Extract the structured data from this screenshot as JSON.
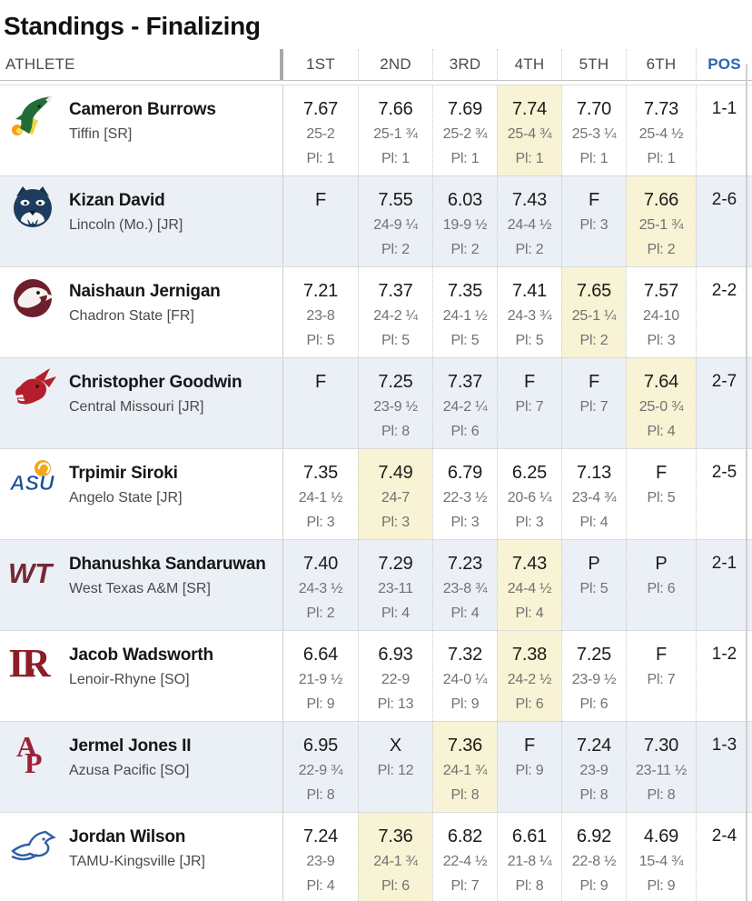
{
  "title": "Standings - Finalizing",
  "table": {
    "columns": {
      "athlete": "ATHLETE",
      "rounds": [
        "1ST",
        "2ND",
        "3RD",
        "4TH",
        "5TH",
        "6TH"
      ],
      "pos": "POS"
    },
    "colors": {
      "pos_header": "#2767ae",
      "highlight": "#f8f3d4",
      "alt_row": "#eaf0f5"
    },
    "rows": [
      {
        "athlete": "Cameron Burrows",
        "team": "Tiffin [SR]",
        "logo": "tiffin-dragon",
        "pos": "1-1",
        "attempts": [
          {
            "mark": "7.67",
            "distance": "25-2",
            "place": "Pl: 1"
          },
          {
            "mark": "7.66",
            "distance": "25-1 ¾",
            "place": "Pl: 1"
          },
          {
            "mark": "7.69",
            "distance": "25-2 ¾",
            "place": "Pl: 1"
          },
          {
            "mark": "7.74",
            "distance": "25-4 ¾",
            "place": "Pl: 1",
            "highlight": true
          },
          {
            "mark": "7.70",
            "distance": "25-3 ¼",
            "place": "Pl: 1"
          },
          {
            "mark": "7.73",
            "distance": "25-4 ½",
            "place": "Pl: 1"
          }
        ]
      },
      {
        "athlete": "Kizan David",
        "team": "Lincoln (Mo.) [JR]",
        "logo": "lincoln-blue-tiger",
        "pos": "2-6",
        "attempts": [
          {
            "mark": "F"
          },
          {
            "mark": "7.55",
            "distance": "24-9 ¼",
            "place": "Pl: 2"
          },
          {
            "mark": "6.03",
            "distance": "19-9 ½",
            "place": "Pl: 2"
          },
          {
            "mark": "7.43",
            "distance": "24-4 ½",
            "place": "Pl: 2"
          },
          {
            "mark": "F",
            "place": "Pl: 3"
          },
          {
            "mark": "7.66",
            "distance": "25-1 ¾",
            "place": "Pl: 2",
            "highlight": true
          }
        ]
      },
      {
        "athlete": "Naishaun Jernigan",
        "team": "Chadron State [FR]",
        "logo": "chadron-eagle",
        "pos": "2-2",
        "attempts": [
          {
            "mark": "7.21",
            "distance": "23-8",
            "place": "Pl: 5"
          },
          {
            "mark": "7.37",
            "distance": "24-2 ¼",
            "place": "Pl: 5"
          },
          {
            "mark": "7.35",
            "distance": "24-1 ½",
            "place": "Pl: 5"
          },
          {
            "mark": "7.41",
            "distance": "24-3 ¾",
            "place": "Pl: 5"
          },
          {
            "mark": "7.65",
            "distance": "25-1 ¼",
            "place": "Pl: 2",
            "highlight": true
          },
          {
            "mark": "7.57",
            "distance": "24-10",
            "place": "Pl: 3"
          }
        ]
      },
      {
        "athlete": "Christopher Goodwin",
        "team": "Central Missouri [JR]",
        "logo": "central-missouri-mule",
        "pos": "2-7",
        "attempts": [
          {
            "mark": "F"
          },
          {
            "mark": "7.25",
            "distance": "23-9 ½",
            "place": "Pl: 8"
          },
          {
            "mark": "7.37",
            "distance": "24-2 ¼",
            "place": "Pl: 6"
          },
          {
            "mark": "F",
            "place": "Pl: 7"
          },
          {
            "mark": "F",
            "place": "Pl: 7"
          },
          {
            "mark": "7.64",
            "distance": "25-0 ¾",
            "place": "Pl: 4",
            "highlight": true
          }
        ]
      },
      {
        "athlete": "Trpimir Siroki",
        "team": "Angelo State [JR]",
        "logo": "angelo-state-asu",
        "pos": "2-5",
        "attempts": [
          {
            "mark": "7.35",
            "distance": "24-1 ½",
            "place": "Pl: 3"
          },
          {
            "mark": "7.49",
            "distance": "24-7",
            "place": "Pl: 3",
            "highlight": true
          },
          {
            "mark": "6.79",
            "distance": "22-3 ½",
            "place": "Pl: 3"
          },
          {
            "mark": "6.25",
            "distance": "20-6 ¼",
            "place": "Pl: 3"
          },
          {
            "mark": "7.13",
            "distance": "23-4 ¾",
            "place": "Pl: 4"
          },
          {
            "mark": "F",
            "place": "Pl: 5"
          }
        ]
      },
      {
        "athlete": "Dhanushka Sandaruwan",
        "team": "West Texas A&M [SR]",
        "logo": "west-texas-wt",
        "pos": "2-1",
        "attempts": [
          {
            "mark": "7.40",
            "distance": "24-3 ½",
            "place": "Pl: 2"
          },
          {
            "mark": "7.29",
            "distance": "23-11",
            "place": "Pl: 4"
          },
          {
            "mark": "7.23",
            "distance": "23-8 ¾",
            "place": "Pl: 4"
          },
          {
            "mark": "7.43",
            "distance": "24-4 ½",
            "place": "Pl: 4",
            "highlight": true
          },
          {
            "mark": "P",
            "place": "Pl: 5"
          },
          {
            "mark": "P",
            "place": "Pl: 6"
          }
        ]
      },
      {
        "athlete": "Jacob Wadsworth",
        "team": "Lenoir-Rhyne [SO]",
        "logo": "lenoir-rhyne-lr",
        "pos": "1-2",
        "attempts": [
          {
            "mark": "6.64",
            "distance": "21-9 ½",
            "place": "Pl: 9"
          },
          {
            "mark": "6.93",
            "distance": "22-9",
            "place": "Pl: 13"
          },
          {
            "mark": "7.32",
            "distance": "24-0 ¼",
            "place": "Pl: 9"
          },
          {
            "mark": "7.38",
            "distance": "24-2 ½",
            "place": "Pl: 6",
            "highlight": true
          },
          {
            "mark": "7.25",
            "distance": "23-9 ½",
            "place": "Pl: 6"
          },
          {
            "mark": "F",
            "place": "Pl: 7"
          }
        ]
      },
      {
        "athlete": "Jermel Jones II",
        "team": "Azusa Pacific [SO]",
        "logo": "azusa-pacific-ap",
        "pos": "1-3",
        "attempts": [
          {
            "mark": "6.95",
            "distance": "22-9 ¾",
            "place": "Pl: 8"
          },
          {
            "mark": "X",
            "place": "Pl: 12"
          },
          {
            "mark": "7.36",
            "distance": "24-1 ¾",
            "place": "Pl: 8",
            "highlight": true
          },
          {
            "mark": "F",
            "place": "Pl: 9"
          },
          {
            "mark": "7.24",
            "distance": "23-9",
            "place": "Pl: 8"
          },
          {
            "mark": "7.30",
            "distance": "23-11 ½",
            "place": "Pl: 8"
          }
        ]
      },
      {
        "athlete": "Jordan Wilson",
        "team": "TAMU-Kingsville [JR]",
        "logo": "tamuk-javelina",
        "pos": "2-4",
        "attempts": [
          {
            "mark": "7.24",
            "distance": "23-9",
            "place": "Pl: 4"
          },
          {
            "mark": "7.36",
            "distance": "24-1 ¾",
            "place": "Pl: 6",
            "highlight": true
          },
          {
            "mark": "6.82",
            "distance": "22-4 ½",
            "place": "Pl: 7"
          },
          {
            "mark": "6.61",
            "distance": "21-8 ¼",
            "place": "Pl: 8"
          },
          {
            "mark": "6.92",
            "distance": "22-8 ½",
            "place": "Pl: 9"
          },
          {
            "mark": "4.69",
            "distance": "15-4 ¾",
            "place": "Pl: 9"
          }
        ]
      }
    ]
  }
}
